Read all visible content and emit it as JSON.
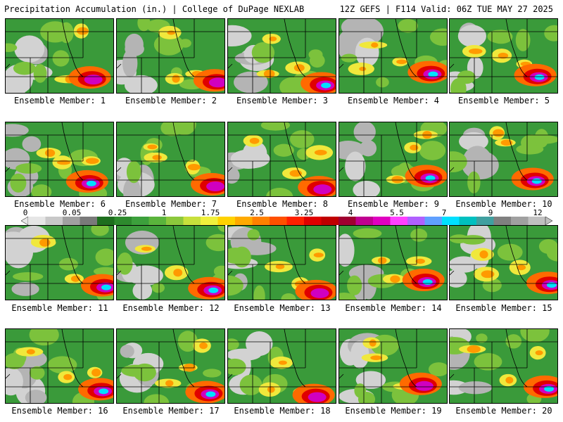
{
  "header": {
    "left": "Precipitation Accumulation (in.) | College of DuPage NEXLAB",
    "right": "12Z GEFS | F114 Valid: 06Z TUE MAY 27 2025"
  },
  "colorbar": {
    "labels": [
      "0",
      "0.05",
      "0.25",
      "1",
      "1.75",
      "2.5",
      "3.25",
      "4",
      "5.5",
      "7",
      "9",
      "12"
    ],
    "colors": [
      "#e6e6e6",
      "#c8c8c8",
      "#a0a0a0",
      "#7a7a7a",
      "#1e6e1e",
      "#2d8a2d",
      "#3ca03c",
      "#5ab43c",
      "#8cc83c",
      "#c8e03c",
      "#f0f03c",
      "#ffd200",
      "#ffaa00",
      "#ff8000",
      "#ff5000",
      "#ff2000",
      "#e00000",
      "#c00000",
      "#a00030",
      "#c00090",
      "#e000c0",
      "#ff40ff",
      "#b060ff",
      "#60a0ff",
      "#00e0ff",
      "#00c0c0",
      "#40a0a0",
      "#808080",
      "#a0a0a0",
      "#c0c0c0"
    ]
  },
  "members": [
    {
      "label": "Ensemble Member: 1"
    },
    {
      "label": "Ensemble Member: 2"
    },
    {
      "label": "Ensemble Member: 3"
    },
    {
      "label": "Ensemble Member: 4"
    },
    {
      "label": "Ensemble Member: 5"
    },
    {
      "label": "Ensemble Member: 6"
    },
    {
      "label": "Ensemble Member: 7"
    },
    {
      "label": "Ensemble Member: 8"
    },
    {
      "label": "Ensemble Member: 9"
    },
    {
      "label": "Ensemble Member: 10"
    },
    {
      "label": "Ensemble Member: 11"
    },
    {
      "label": "Ensemble Member: 12"
    },
    {
      "label": "Ensemble Member: 13"
    },
    {
      "label": "Ensemble Member: 14"
    },
    {
      "label": "Ensemble Member: 15"
    },
    {
      "label": "Ensemble Member: 16"
    },
    {
      "label": "Ensemble Member: 17"
    },
    {
      "label": "Ensemble Member: 18"
    },
    {
      "label": "Ensemble Member: 19"
    },
    {
      "label": "Ensemble Member: 20"
    }
  ]
}
